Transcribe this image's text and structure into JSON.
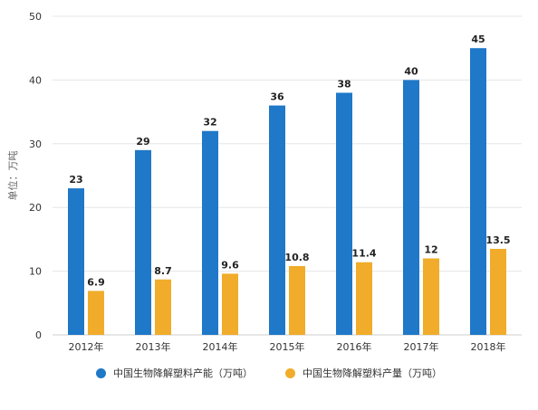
{
  "chart_data": {
    "type": "bar",
    "categories": [
      "2012年",
      "2013年",
      "2014年",
      "2015年",
      "2016年",
      "2017年",
      "2018年"
    ],
    "series": [
      {
        "name": "中国生物降解塑料产能（万吨）",
        "values": [
          23,
          29,
          32,
          36,
          38,
          40,
          45
        ],
        "color": "#1f78c8",
        "labels": [
          "23",
          "29",
          "32",
          "36",
          "38",
          "40",
          "45"
        ]
      },
      {
        "name": "中国生物降解塑料产量（万吨）",
        "values": [
          6.9,
          8.7,
          9.6,
          10.8,
          11.4,
          12,
          13.5
        ],
        "color": "#f0ac2a",
        "labels": [
          "6.9",
          "8.7",
          "9.6",
          "10.8",
          "11.4",
          "12",
          "13.5"
        ]
      }
    ],
    "ylabel": "单位：万吨",
    "ylim": [
      0,
      50
    ],
    "yticks": [
      0,
      10,
      20,
      30,
      40,
      50
    ],
    "grid": true,
    "legend_position": "bottom"
  }
}
